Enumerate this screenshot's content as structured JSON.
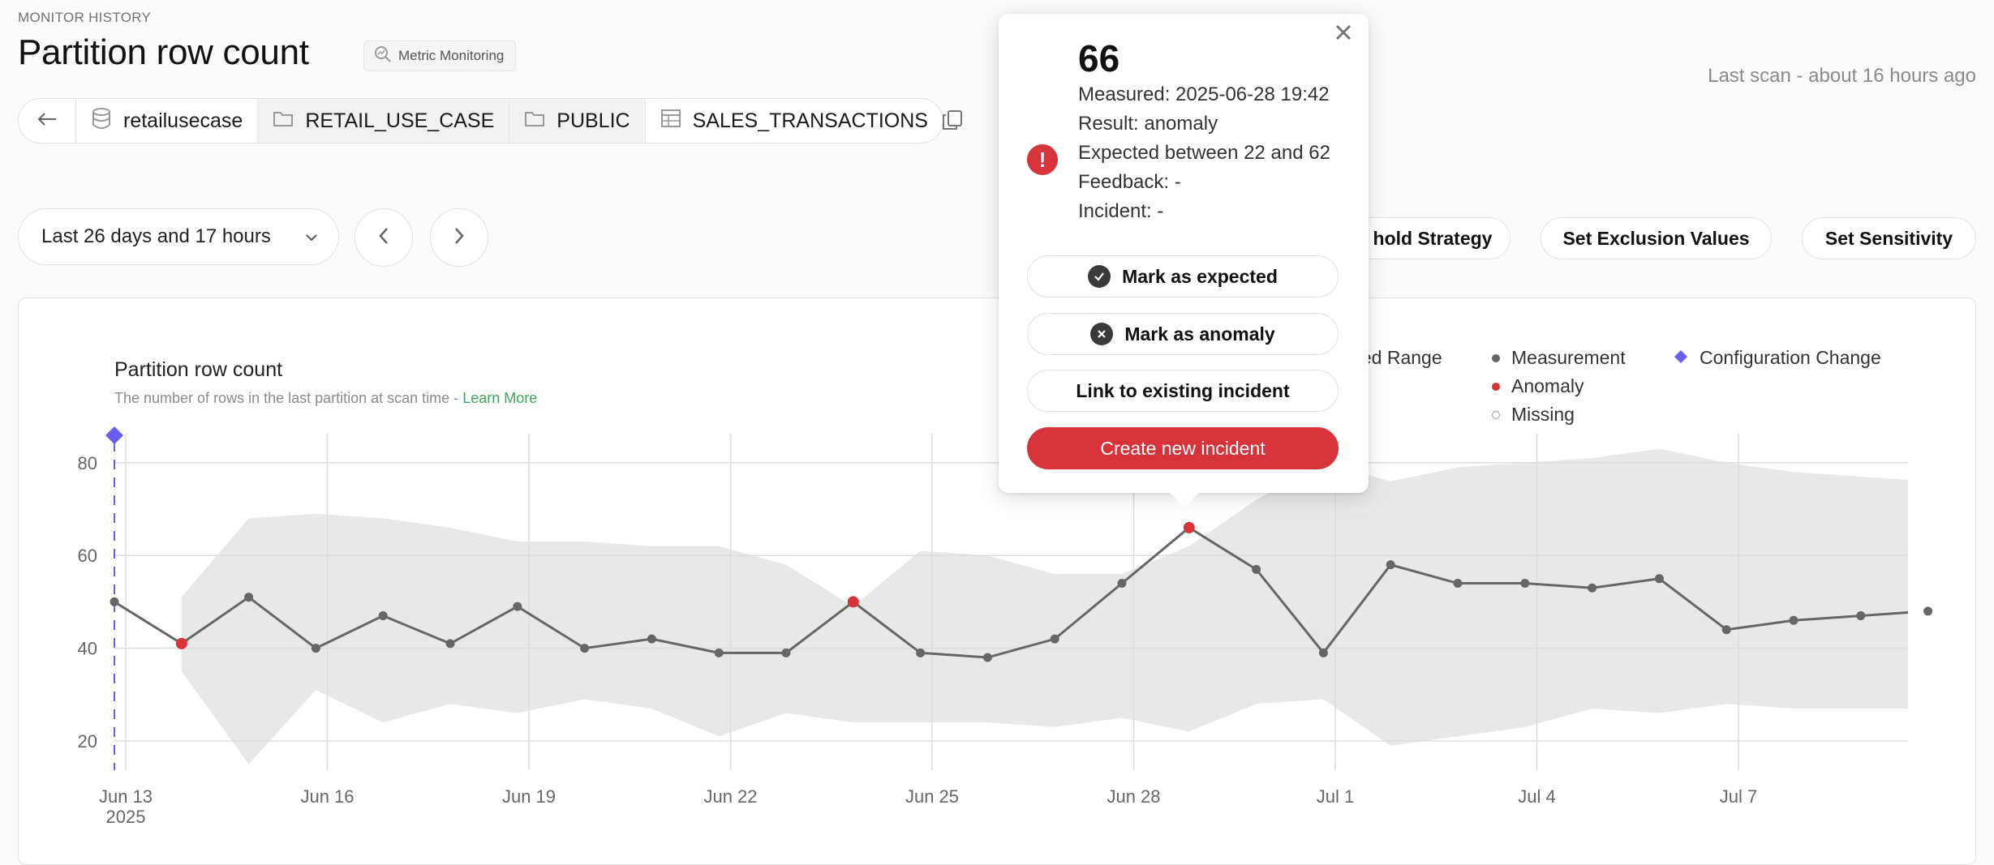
{
  "header": {
    "eyebrow": "MONITOR HISTORY",
    "title": "Partition row count",
    "chip_label": "Metric Monitoring",
    "last_scan": "Last scan - about 16 hours ago"
  },
  "breadcrumb": [
    {
      "label": "retailusecase",
      "icon": "database-icon"
    },
    {
      "label": "RETAIL_USE_CASE",
      "icon": "folder-icon"
    },
    {
      "label": "PUBLIC",
      "icon": "folder-icon"
    },
    {
      "label": "SALES_TRANSACTIONS",
      "icon": "table-icon"
    }
  ],
  "toolbar": {
    "range_label": "Last 26 days and 17 hours",
    "threshold_button": "hold Strategy",
    "exclusion_button": "Set Exclusion Values",
    "sensitivity_button": "Set Sensitivity"
  },
  "chart": {
    "title": "Partition row count",
    "subtitle": "The number of rows in the last partition at scan time - ",
    "learn_more": "Learn More",
    "legend": {
      "expected_range": "cted Range",
      "measurement": "Measurement",
      "anomaly": "Anomaly",
      "missing": "Missing",
      "config_change": "Configuration Change"
    }
  },
  "popover": {
    "value": "66",
    "measured": "Measured: 2025-06-28 19:42",
    "result": "Result: anomaly",
    "expected": "Expected between 22 and 62",
    "feedback": "Feedback: -",
    "incident": "Incident: -",
    "mark_expected": "Mark as expected",
    "mark_anomaly": "Mark as anomaly",
    "link_incident": "Link to existing incident",
    "create_incident": "Create new incident"
  },
  "colors": {
    "measurement": "#666666",
    "anomaly": "#d6333a",
    "config_change": "#6b5cf0",
    "expected_band": "#e8e8e8",
    "learn_more": "#3fa35b"
  },
  "chart_data": {
    "type": "line",
    "title": "Partition row count",
    "ylim": [
      15,
      85
    ],
    "yticks": [
      20,
      40,
      60,
      80
    ],
    "xticks": [
      "Jun 13",
      "Jun 16",
      "Jun 19",
      "Jun 22",
      "Jun 25",
      "Jun 28",
      "Jul 1",
      "Jul 4",
      "Jul 7"
    ],
    "xtick_sublabel": "2025",
    "grid": true,
    "legend_position": "top-right",
    "series": [
      {
        "name": "Measurement",
        "x": [
          12.8,
          13.8,
          14.8,
          15.8,
          16.8,
          17.8,
          18.8,
          19.8,
          20.8,
          21.8,
          22.8,
          23.8,
          24.8,
          25.8,
          26.8,
          27.8,
          28.8,
          29.8,
          30.8,
          31.8,
          32.8,
          33.8,
          34.8,
          35.8,
          36.8,
          37.8,
          38.8,
          39.8
        ],
        "y": [
          50,
          41,
          51,
          40,
          47,
          41,
          49,
          40,
          42,
          39,
          39,
          50,
          39,
          38,
          42,
          54,
          66,
          57,
          39,
          58,
          54,
          54,
          53,
          55,
          44,
          46,
          47,
          48
        ],
        "anomaly_x": [
          13.8,
          23.8,
          28.8
        ]
      },
      {
        "name": "Expected Range",
        "x": [
          13.8,
          14.8,
          15.8,
          16.8,
          17.8,
          18.8,
          19.8,
          20.8,
          21.8,
          22.8,
          23.8,
          24.8,
          25.8,
          26.8,
          27.8,
          28.8,
          29.8,
          30.8,
          31.8,
          32.8,
          33.8,
          34.8,
          35.8,
          36.8,
          37.8,
          38.8,
          39.8
        ],
        "upper": [
          51,
          68,
          69,
          68,
          66,
          63,
          63,
          62,
          62,
          58,
          49,
          61,
          60,
          56,
          56,
          62,
          72,
          80,
          76,
          79,
          80,
          81,
          83,
          80,
          78,
          77,
          76
        ],
        "lower": [
          35,
          15,
          31,
          24,
          28,
          26,
          29,
          27,
          21,
          26,
          24,
          24,
          24,
          23,
          25,
          22,
          28,
          29,
          19,
          21,
          23,
          27,
          26,
          28,
          27,
          27,
          27
        ]
      }
    ],
    "configuration_change_x": [
      12.8
    ]
  }
}
